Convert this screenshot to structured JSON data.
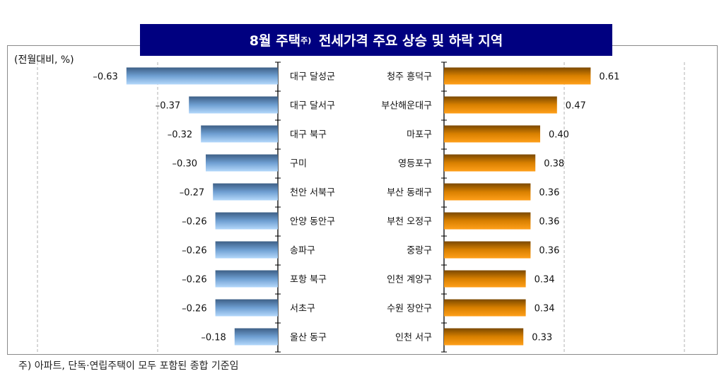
{
  "title": "8월 주택",
  "title_sup": "주)",
  "title_rest": "전세가격 주요 상승 및 하락 지역",
  "footnote": "주) 아파트, 단독·연립주택이 모두 포함된 종합 기준임",
  "chart_data": {
    "type": "bar",
    "ylabel": "(전월대비, %)",
    "grid": "vertical dashed",
    "xlim_left": [
      -1.0,
      0
    ],
    "xlim_right": [
      0,
      1.0
    ],
    "series": [
      {
        "side": "left",
        "color": "#6fa0d8",
        "categories": [
          "대구 달성군",
          "대구 달서구",
          "대구 북구",
          "구미",
          "천안 서북구",
          "안양 동안구",
          "송파구",
          "포항 북구",
          "서초구",
          "울산 동구"
        ],
        "values": [
          -0.63,
          -0.37,
          -0.32,
          -0.3,
          -0.27,
          -0.26,
          -0.26,
          -0.26,
          -0.26,
          -0.18
        ],
        "labels": [
          "–0.63",
          "–0.37",
          "–0.32",
          "–0.30",
          "–0.27",
          "–0.26",
          "–0.26",
          "–0.26",
          "–0.26",
          "–0.18"
        ]
      },
      {
        "side": "right",
        "color": "#ff9900",
        "categories": [
          "청주 흥덕구",
          "부산해운대구",
          "마포구",
          "영등포구",
          "부산 동래구",
          "부천 오정구",
          "중랑구",
          "인천 계양구",
          "수원 장안구",
          "인천 서구"
        ],
        "values": [
          0.61,
          0.47,
          0.4,
          0.38,
          0.36,
          0.36,
          0.36,
          0.34,
          0.34,
          0.33
        ],
        "labels": [
          "0.61",
          "0.47",
          "0.40",
          "0.38",
          "0.36",
          "0.36",
          "0.36",
          "0.34",
          "0.34",
          "0.33"
        ]
      }
    ]
  }
}
